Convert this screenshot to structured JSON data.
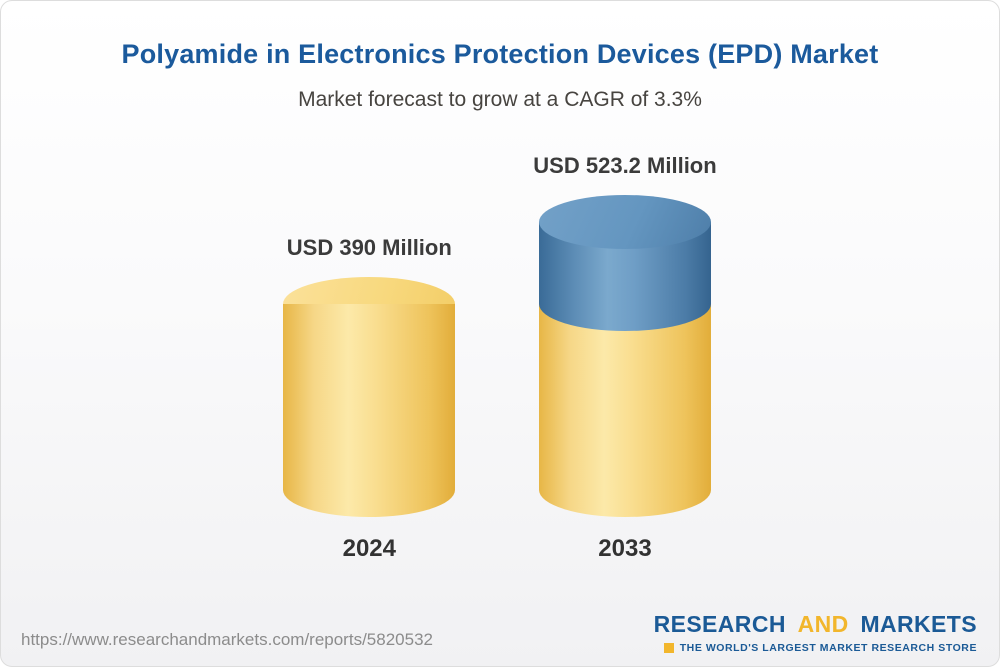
{
  "header": {
    "title": "Polyamide in Electronics Protection Devices (EPD) Market",
    "subtitle": "Market forecast to grow at a CAGR of 3.3%"
  },
  "chart_data": {
    "type": "bar",
    "title": "Polyamide in Electronics Protection Devices (EPD) Market",
    "subtitle": "Market forecast to grow at a CAGR of 3.3%",
    "cagr_percent": 3.3,
    "categories": [
      "2024",
      "2033"
    ],
    "values": [
      390,
      523.2
    ],
    "value_labels": [
      "USD 390 Million",
      "USD 523.2 Million"
    ],
    "unit": "USD Million",
    "ylim": [
      0,
      560
    ],
    "grid": false,
    "legend": false,
    "colors": {
      "base_segment": "#f3cd66",
      "growth_segment": "#5b8ab2",
      "title_blue": "#1b5a9c",
      "subtitle_gray": "#474440"
    }
  },
  "footer": {
    "url": "https://www.researchandmarkets.com/reports/5820532",
    "logo": {
      "part1": "RESEARCH",
      "part2": "AND",
      "part3": "MARKETS",
      "tagline": "THE WORLD'S LARGEST MARKET RESEARCH STORE",
      "blue": "#1b5a96",
      "yellow": "#f2b62c"
    }
  }
}
